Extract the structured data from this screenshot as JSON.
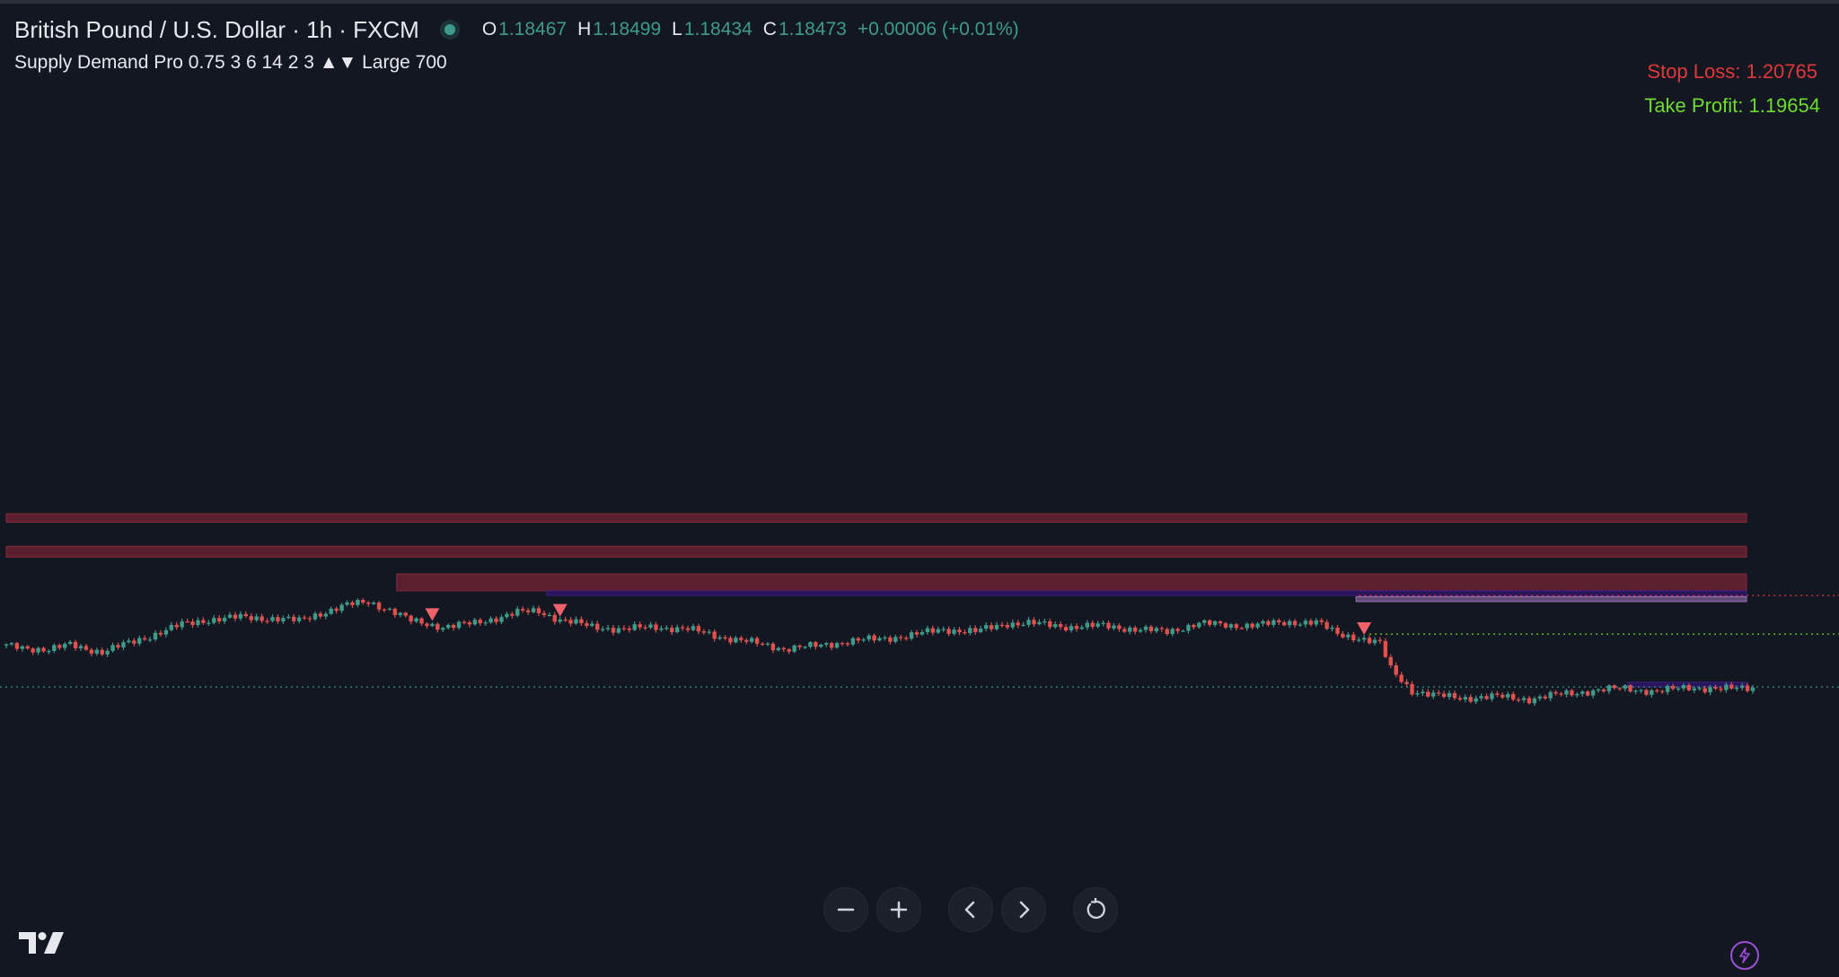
{
  "header": {
    "symbol_title": "British Pound / U.S. Dollar · 1h · FXCM",
    "ohlc": {
      "open_key": "O",
      "open": "1.18467",
      "high_key": "H",
      "high": "1.18499",
      "low_key": "L",
      "low": "1.18434",
      "close_key": "C",
      "close": "1.18473",
      "change": "+0.00006 (+0.01%)"
    }
  },
  "indicator": {
    "label": "Supply Demand Pro 0.75 3 6 14 2 3 ▲▼ Large 700"
  },
  "levels": {
    "stop_loss": "Stop Loss: 1.20765",
    "take_profit": "Take Profit: 1.19654"
  },
  "colors": {
    "background": "#131722",
    "bull": "#3d9b8a",
    "bear": "#e2504d",
    "supply_zone": "#5c1f2e",
    "demand_zone": "#2a1560",
    "stop_loss": "#e03838",
    "take_profit": "#6ddc2f"
  },
  "toolbar": {
    "zoom_out_icon": "minus-icon",
    "zoom_in_icon": "plus-icon",
    "scroll_left_icon": "chevron-left-icon",
    "scroll_right_icon": "chevron-right-icon",
    "reset_icon": "reset-icon"
  },
  "chart_data": {
    "type": "candlestick",
    "symbol": "GBPUSD",
    "interval": "1h",
    "close_anchors": [
      [
        0,
        1.1822
      ],
      [
        8,
        1.1819
      ],
      [
        12,
        1.1823
      ],
      [
        18,
        1.1817
      ],
      [
        22,
        1.1823
      ],
      [
        28,
        1.1832
      ],
      [
        33,
        1.184
      ],
      [
        38,
        1.1844
      ],
      [
        44,
        1.1846
      ],
      [
        50,
        1.1845
      ],
      [
        55,
        1.1843
      ],
      [
        58,
        1.1848
      ],
      [
        64,
        1.1856
      ],
      [
        68,
        1.1859
      ],
      [
        72,
        1.1852
      ],
      [
        76,
        1.1843
      ],
      [
        82,
        1.1838
      ],
      [
        88,
        1.1841
      ],
      [
        96,
        1.185
      ],
      [
        100,
        1.1851
      ],
      [
        104,
        1.1844
      ],
      [
        110,
        1.1838
      ],
      [
        116,
        1.1836
      ],
      [
        122,
        1.1838
      ],
      [
        128,
        1.1836
      ],
      [
        134,
        1.183
      ],
      [
        140,
        1.1825
      ],
      [
        146,
        1.182
      ],
      [
        152,
        1.1822
      ],
      [
        158,
        1.1826
      ],
      [
        164,
        1.1828
      ],
      [
        170,
        1.1831
      ],
      [
        176,
        1.1836
      ],
      [
        182,
        1.1834
      ],
      [
        188,
        1.1841
      ],
      [
        192,
        1.1841
      ],
      [
        200,
        1.1838
      ],
      [
        206,
        1.1839
      ],
      [
        212,
        1.1836
      ],
      [
        218,
        1.1834
      ],
      [
        224,
        1.1841
      ],
      [
        230,
        1.1839
      ],
      [
        236,
        1.184
      ],
      [
        242,
        1.1842
      ],
      [
        246,
        1.1842
      ],
      [
        250,
        1.1832
      ],
      [
        254,
        1.1829
      ],
      [
        258,
        1.1824
      ],
      [
        260,
        1.1803
      ],
      [
        264,
        1.1785
      ],
      [
        268,
        1.1781
      ],
      [
        274,
        1.1779
      ],
      [
        280,
        1.178
      ],
      [
        286,
        1.1778
      ],
      [
        292,
        1.1782
      ],
      [
        298,
        1.1785
      ],
      [
        304,
        1.1787
      ],
      [
        310,
        1.1784
      ],
      [
        316,
        1.1788
      ],
      [
        322,
        1.1786
      ],
      [
        328,
        1.1788
      ]
    ],
    "current_price": 1.18473,
    "supply_zones": [
      {
        "from": 0,
        "high": 1.1932,
        "low": 1.1925
      },
      {
        "from": 0,
        "high": 1.1905,
        "low": 1.1896
      },
      {
        "from": 74,
        "high": 1.1882,
        "low": 1.1868
      }
    ],
    "demand_zones": [
      {
        "from": 102,
        "high": 1.1868,
        "low": 1.1864
      },
      {
        "from": 254,
        "high": 1.1863,
        "low": 1.1859,
        "selected": true
      },
      {
        "from": 305,
        "high": 1.1792,
        "low": 1.1788
      }
    ],
    "sell_signals": [
      80,
      104,
      255
    ],
    "stop_loss": 1.20765,
    "take_profit": 1.19654,
    "grid": false,
    "x_axis_visible": false,
    "y_axis_visible": false
  }
}
